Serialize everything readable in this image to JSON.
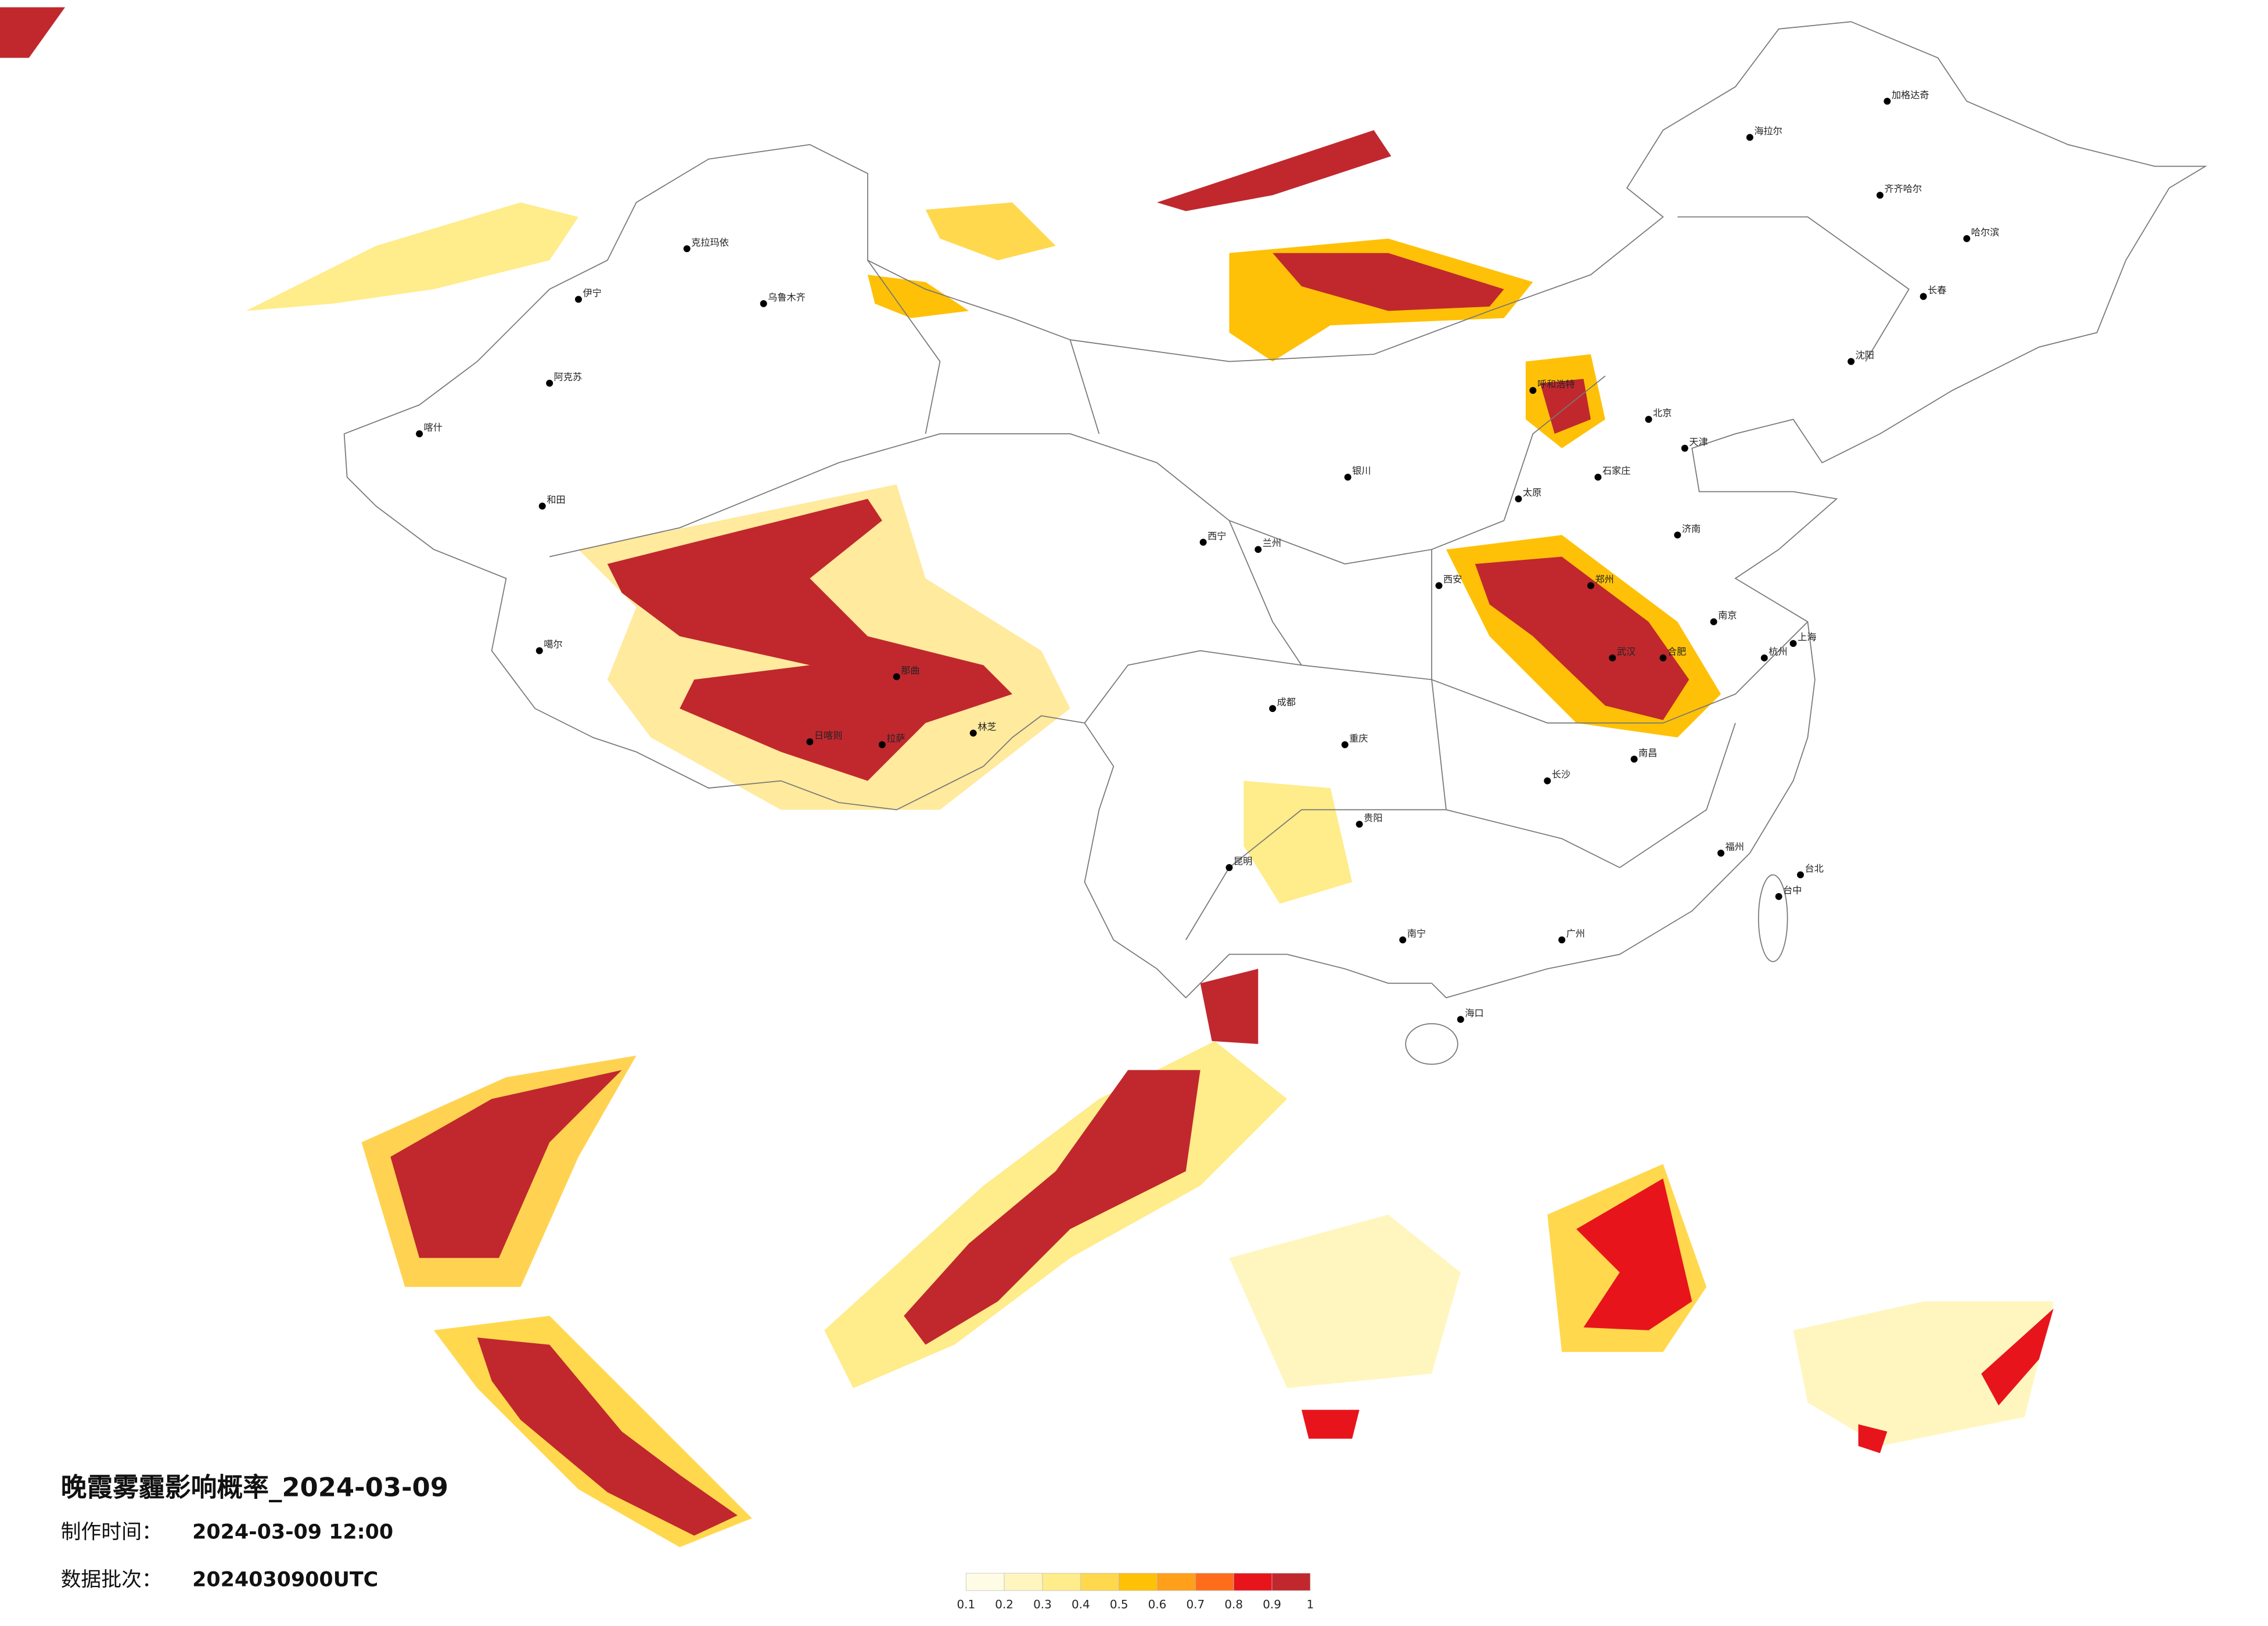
{
  "title": "晚霞雾霾影响概率_2024-03-09",
  "production_time": {
    "label": "制作时间：",
    "value": "2024-03-09 12:00"
  },
  "data_batch": {
    "label": "数据批次：",
    "value": "2024030900UTC"
  },
  "colorbar": {
    "ticks": [
      0.1,
      0.2,
      0.3,
      0.4,
      0.5,
      0.6,
      0.7,
      0.8,
      0.9,
      1
    ],
    "colors": [
      "#fffce6",
      "#fff6bf",
      "#ffec8a",
      "#ffd84d",
      "#ffc107",
      "#ff9f1a",
      "#ff6d1a",
      "#e8141c",
      "#c0282e"
    ]
  },
  "cities": [
    "克拉玛依",
    "乌鲁木齐",
    "伊宁",
    "阿克苏",
    "喀什",
    "和田",
    "噶尔",
    "日喀则",
    "拉萨",
    "林芝",
    "那曲",
    "西宁",
    "兰州",
    "银川",
    "呼和浩特",
    "北京",
    "天津",
    "石家庄",
    "太原",
    "济南",
    "郑州",
    "西安",
    "成都",
    "重庆",
    "贵阳",
    "昆明",
    "南宁",
    "广州",
    "长沙",
    "武汉",
    "南昌",
    "福州",
    "杭州",
    "上海",
    "南京",
    "合肥",
    "哈尔滨",
    "长春",
    "沈阳",
    "海口",
    "台北",
    "台中",
    "加格达奇",
    "海拉尔",
    "齐齐哈尔"
  ]
}
